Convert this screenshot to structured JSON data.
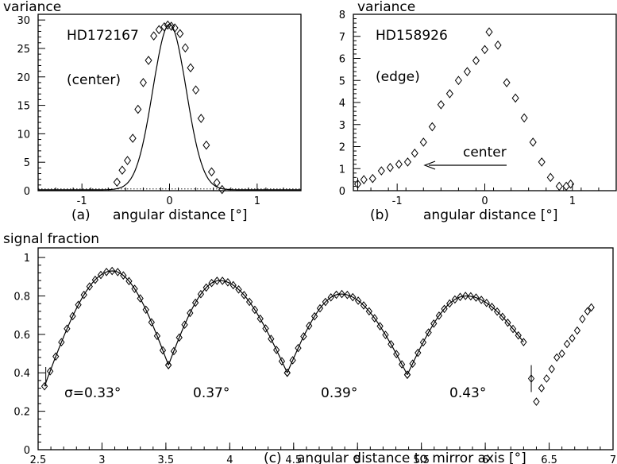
{
  "chart_data": [
    {
      "type": "scatter",
      "panel": "(a)",
      "ylabel": "variance",
      "xlabel": "angular distance [°]",
      "xlim": [
        -1.5,
        1.5
      ],
      "ylim": [
        0,
        31
      ],
      "xticks": [
        -1,
        0,
        1
      ],
      "xtick_labels": [
        "-1",
        "0",
        "1"
      ],
      "yticks": [
        0,
        5,
        10,
        15,
        20,
        25,
        30
      ],
      "ytick_labels": [
        "0",
        "5",
        "10",
        "15",
        "20",
        "25",
        "30"
      ],
      "annotations": [
        "HD172167",
        "(center)"
      ],
      "series": [
        {
          "x": [
            -0.6,
            -0.54,
            -0.48,
            -0.42,
            -0.36,
            -0.3,
            -0.24,
            -0.18,
            -0.12,
            -0.06,
            -0.02,
            0.02,
            0.06,
            0.12,
            0.18,
            0.24,
            0.3,
            0.36,
            0.42,
            0.48,
            0.54,
            0.6
          ],
          "y": [
            1.5,
            3.6,
            5.3,
            9.2,
            14.3,
            19.0,
            22.9,
            27.2,
            28.3,
            28.8,
            29.1,
            28.9,
            28.6,
            27.6,
            25.1,
            21.6,
            17.7,
            12.7,
            8.0,
            3.3,
            1.4,
            0.2
          ]
        }
      ],
      "fit": {
        "type": "gaussian",
        "amplitude": 29.1,
        "mean": 0.0,
        "sigma": 0.19
      },
      "baseline": 0.3
    },
    {
      "type": "scatter",
      "panel": "(b)",
      "ylabel": "variance",
      "xlabel": "angular distance [°]",
      "xlim": [
        -1.5,
        1.5
      ],
      "ylim": [
        0,
        8
      ],
      "xticks": [
        -1,
        0,
        1
      ],
      "xtick_labels": [
        "-1",
        "0",
        "1"
      ],
      "yticks": [
        0,
        1,
        2,
        3,
        4,
        5,
        6,
        7,
        8
      ],
      "ytick_labels": [
        "0",
        "1",
        "2",
        "3",
        "4",
        "5",
        "6",
        "7",
        "8"
      ],
      "annotations": [
        "HD158926",
        "(edge)",
        "center"
      ],
      "series": [
        {
          "x": [
            -1.45,
            -1.38,
            -1.28,
            -1.18,
            -1.08,
            -0.98,
            -0.88,
            -0.8,
            -0.7,
            -0.6,
            -0.5,
            -0.4,
            -0.3,
            -0.2,
            -0.1,
            0.0,
            0.05,
            0.15,
            0.25,
            0.35,
            0.45,
            0.55,
            0.65,
            0.75,
            0.85,
            0.93,
            0.98
          ],
          "y": [
            0.3,
            0.5,
            0.55,
            0.9,
            1.05,
            1.2,
            1.3,
            1.7,
            2.2,
            2.9,
            3.9,
            4.4,
            5.0,
            5.4,
            5.9,
            6.4,
            7.2,
            6.6,
            4.9,
            4.2,
            3.3,
            2.2,
            1.3,
            0.6,
            0.2,
            0.2,
            0.3
          ]
        }
      ]
    },
    {
      "type": "scatter",
      "panel": "(c)",
      "ylabel": "signal fraction",
      "xlabel": "angular distance to mirror axis [°]",
      "xlim": [
        2.5,
        7.0
      ],
      "ylim": [
        0,
        1.05
      ],
      "xticks": [
        2.5,
        3,
        3.5,
        4,
        4.5,
        5,
        5.5,
        6,
        6.5,
        7
      ],
      "xtick_labels": [
        "2.5",
        "3",
        "3.5",
        "4",
        "4.5",
        "5",
        "5.5",
        "6",
        "6.5",
        "7"
      ],
      "yticks": [
        0,
        0.2,
        0.4,
        0.6,
        0.8,
        1
      ],
      "ytick_labels": [
        "0",
        "0.2",
        "0.4",
        "0.6",
        "0.8",
        "1"
      ],
      "annotations": [
        "σ=0.33°",
        "0.37°",
        "0.39°",
        "0.43°"
      ],
      "segments": [
        {
          "x0": 2.55,
          "x1": 3.52,
          "peak_x": 3.08,
          "peak_y": 0.93,
          "end_left": 0.33,
          "end_right": 0.44
        },
        {
          "x0": 3.52,
          "x1": 4.45,
          "peak_x": 3.92,
          "peak_y": 0.88,
          "end_left": 0.44,
          "end_right": 0.4
        },
        {
          "x0": 4.45,
          "x1": 5.39,
          "peak_x": 4.87,
          "peak_y": 0.81,
          "end_left": 0.4,
          "end_right": 0.39
        },
        {
          "x0": 5.39,
          "x1": 6.3,
          "peak_x": 5.85,
          "peak_y": 0.8,
          "end_left": 0.39,
          "end_right": 0.56
        }
      ],
      "extra_points": {
        "x": [
          6.36,
          6.4,
          6.44,
          6.48,
          6.52,
          6.56,
          6.6,
          6.64,
          6.68,
          6.72,
          6.76,
          6.8,
          6.83
        ],
        "y": [
          0.37,
          0.25,
          0.32,
          0.37,
          0.42,
          0.48,
          0.5,
          0.55,
          0.58,
          0.62,
          0.68,
          0.72,
          0.74
        ]
      },
      "error_bars": [
        {
          "x": 2.56,
          "y": 0.38,
          "err": 0.05
        },
        {
          "x": 6.36,
          "y": 0.37,
          "err": 0.07
        }
      ]
    }
  ]
}
